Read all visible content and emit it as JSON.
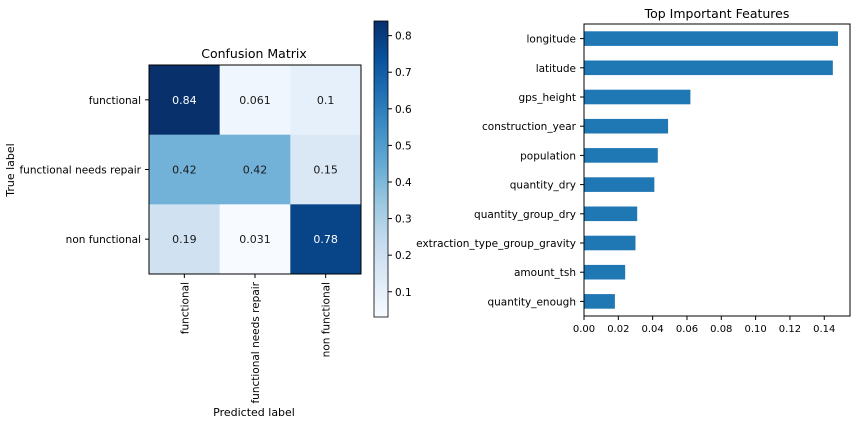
{
  "chart_data": [
    {
      "type": "heatmap",
      "title": "Confusion Matrix",
      "xlabel": "Predicted label",
      "ylabel": "True label",
      "x_categories": [
        "functional",
        "functional needs repair",
        "non functional"
      ],
      "y_categories": [
        "functional",
        "functional needs repair",
        "non functional"
      ],
      "values": [
        [
          0.84,
          0.061,
          0.1
        ],
        [
          0.42,
          0.42,
          0.15
        ],
        [
          0.19,
          0.031,
          0.78
        ]
      ],
      "labels": [
        [
          "0.84",
          "0.061",
          "0.1"
        ],
        [
          "0.42",
          "0.42",
          "0.15"
        ],
        [
          "0.19",
          "0.031",
          "0.78"
        ]
      ],
      "colormap": "Blues",
      "colorbar": {
        "min": 0.031,
        "max": 0.84,
        "ticks": [
          0.1,
          0.2,
          0.3,
          0.4,
          0.5,
          0.6,
          0.7,
          0.8
        ],
        "tick_labels": [
          "0.1",
          "0.2",
          "0.3",
          "0.4",
          "0.5",
          "0.6",
          "0.7",
          "0.8"
        ]
      }
    },
    {
      "type": "bar",
      "orientation": "horizontal",
      "title": "Top Important Features",
      "categories": [
        "longitude",
        "latitude",
        "gps_height",
        "construction_year",
        "population",
        "quantity_dry",
        "quantity_group_dry",
        "extraction_type_group_gravity",
        "amount_tsh",
        "quantity_enough"
      ],
      "values": [
        0.148,
        0.145,
        0.062,
        0.049,
        0.043,
        0.041,
        0.031,
        0.03,
        0.024,
        0.018
      ],
      "xlim": [
        0,
        0.155
      ],
      "x_ticks": [
        0.0,
        0.02,
        0.04,
        0.06,
        0.08,
        0.1,
        0.12,
        0.14
      ],
      "x_tick_labels": [
        "0.00",
        "0.02",
        "0.04",
        "0.06",
        "0.08",
        "0.10",
        "0.12",
        "0.14"
      ],
      "grid": false,
      "color": "#1f77b4"
    }
  ]
}
